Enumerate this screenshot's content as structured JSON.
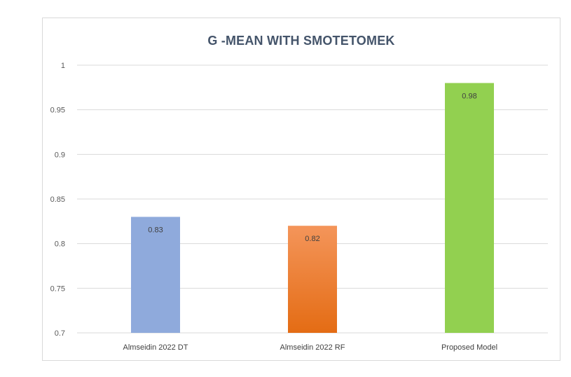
{
  "chart_data": {
    "type": "bar",
    "title": "G -MEAN WITH SMOTETOMEK",
    "xlabel": "",
    "ylabel": "",
    "categories": [
      "Almseidin 2022 DT",
      "Almseidin 2022 RF",
      "Proposed Model"
    ],
    "values": [
      0.83,
      0.82,
      0.98
    ],
    "data_labels": [
      "0.83",
      "0.82",
      "0.98"
    ],
    "y_ticks": [
      "0.7",
      "0.75",
      "0.8",
      "0.85",
      "0.9",
      "0.95",
      "1"
    ],
    "ylim": [
      0.7,
      1
    ],
    "grid": true,
    "legend": "none",
    "colors": {
      "bar_fills": [
        {
          "top": "#8faadc",
          "bottom": "#8faadc"
        },
        {
          "top": "#f4955a",
          "bottom": "#e46c14"
        },
        {
          "top": "#92d050",
          "bottom": "#92d050"
        }
      ],
      "gridline": "#d9d9d9",
      "title": "#44546a"
    }
  }
}
